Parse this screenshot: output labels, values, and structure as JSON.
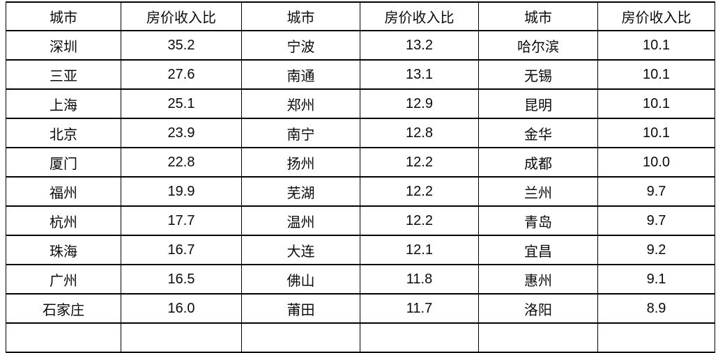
{
  "chart_data": {
    "type": "table",
    "title": "",
    "column_headers": [
      "城市",
      "房价收入比",
      "城市",
      "房价收入比",
      "城市",
      "房价收入比"
    ],
    "rows": [
      [
        "深圳",
        "35.2",
        "宁波",
        "13.2",
        "哈尔滨",
        "10.1"
      ],
      [
        "三亚",
        "27.6",
        "南通",
        "13.1",
        "无锡",
        "10.1"
      ],
      [
        "上海",
        "25.1",
        "郑州",
        "12.9",
        "昆明",
        "10.1"
      ],
      [
        "北京",
        "23.9",
        "南宁",
        "12.8",
        "金华",
        "10.1"
      ],
      [
        "厦门",
        "22.8",
        "扬州",
        "12.2",
        "成都",
        "10.0"
      ],
      [
        "福州",
        "19.9",
        "芜湖",
        "12.2",
        "兰州",
        "9.7"
      ],
      [
        "杭州",
        "17.7",
        "温州",
        "12.2",
        "青岛",
        "9.7"
      ],
      [
        "珠海",
        "16.7",
        "大连",
        "12.1",
        "宜昌",
        "9.2"
      ],
      [
        "广州",
        "16.5",
        "佛山",
        "11.8",
        "惠州",
        "9.1"
      ],
      [
        "石家庄",
        "16.0",
        "莆田",
        "11.7",
        "洛阳",
        "8.9"
      ]
    ],
    "layout": {
      "grid": "on",
      "column_groups": 3,
      "clipped_extra_row_at_bottom": true
    }
  },
  "colors": {
    "background": "#ffffff",
    "border": "#000000",
    "text": "#0a0a0a"
  }
}
